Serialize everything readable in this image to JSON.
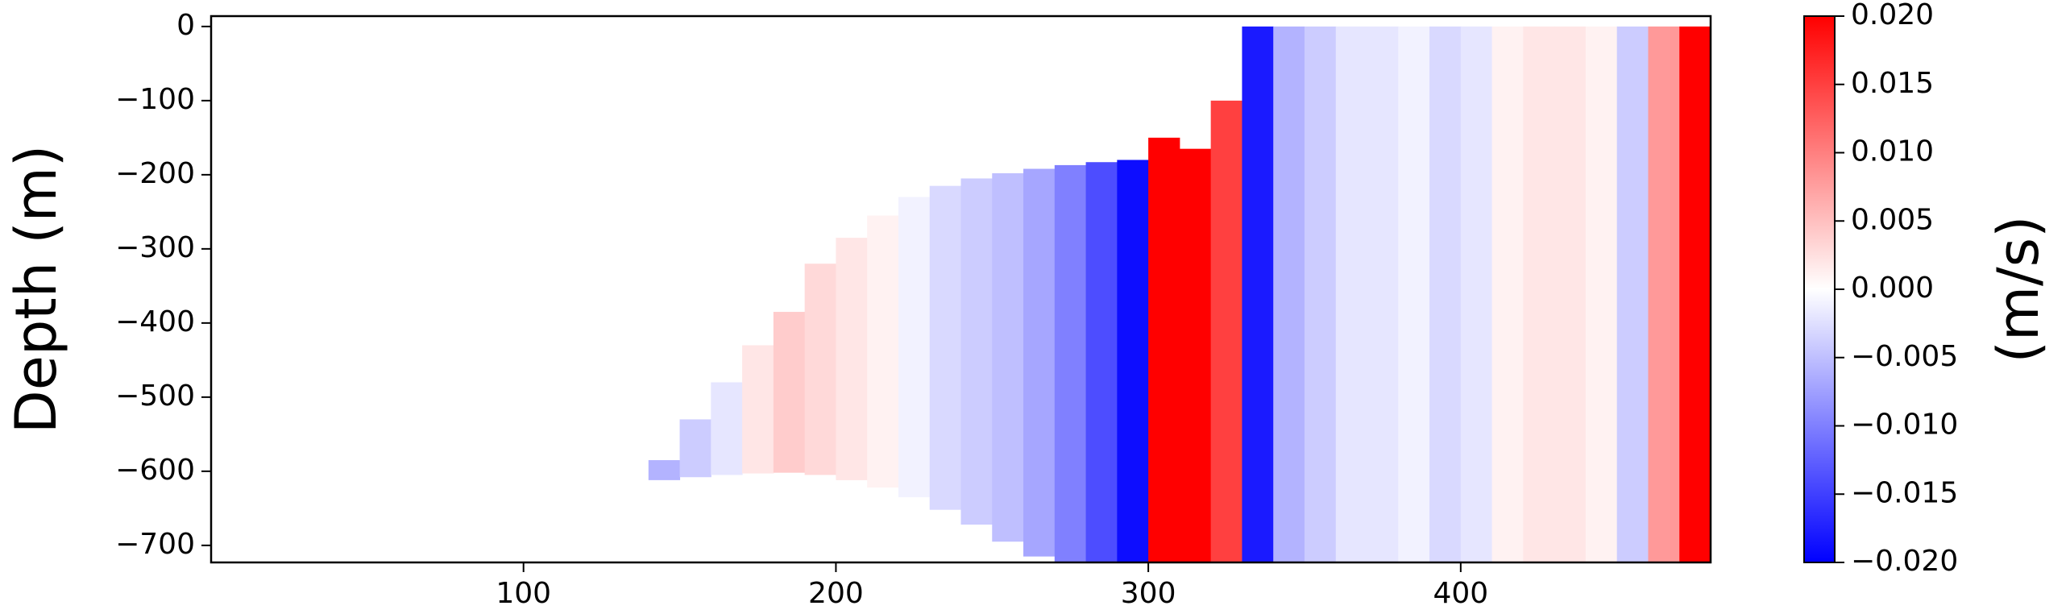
{
  "chart_data": {
    "type": "heatmap",
    "y_label": "Depth (m)",
    "colorbar_label": "(m/s)",
    "x": [
      145,
      155,
      165,
      175,
      185,
      195,
      205,
      215,
      225,
      235,
      245,
      255,
      265,
      275,
      285,
      295,
      305,
      315,
      325,
      335,
      345,
      355,
      365,
      375,
      385,
      395,
      405,
      415,
      425,
      435,
      445,
      455,
      465,
      475
    ],
    "values": [
      -0.006,
      -0.004,
      -0.002,
      0.002,
      0.004,
      0.003,
      0.002,
      0.001,
      -0.001,
      -0.003,
      -0.004,
      -0.005,
      -0.007,
      -0.01,
      -0.014,
      -0.019,
      0.02,
      0.02,
      0.015,
      -0.018,
      -0.006,
      -0.004,
      -0.002,
      -0.002,
      -0.001,
      -0.003,
      -0.002,
      0.001,
      0.002,
      0.002,
      0.001,
      -0.004,
      0.008,
      0.02
    ],
    "tops": [
      -585,
      -530,
      -480,
      -430,
      -385,
      -320,
      -285,
      -255,
      -230,
      -215,
      -205,
      -198,
      -192,
      -187,
      -183,
      -180,
      -150,
      -165,
      -100,
      0,
      0,
      0,
      0,
      0,
      0,
      0,
      0,
      0,
      0,
      0,
      0,
      0,
      0,
      0
    ],
    "bottoms": [
      -612,
      -608,
      -605,
      -603,
      -602,
      -605,
      -612,
      -622,
      -635,
      -652,
      -672,
      -695,
      -715,
      -723,
      -723,
      -723,
      -723,
      -723,
      -723,
      -723,
      -723,
      -723,
      -723,
      -723,
      -723,
      -723,
      -723,
      -723,
      -723,
      -723,
      -723,
      -723,
      -723,
      -723
    ],
    "xlim": [
      0,
      480
    ],
    "ylim": [
      -723,
      14
    ],
    "xticks": [
      100,
      200,
      300,
      400
    ],
    "yticks": [
      0,
      {
        "value": -100,
        "label": "−100"
      },
      {
        "value": -200,
        "label": "−200"
      },
      {
        "value": -300,
        "label": "−300"
      },
      {
        "value": -400,
        "label": "−400"
      },
      {
        "value": -500,
        "label": "−500"
      },
      {
        "value": -600,
        "label": "−600"
      },
      {
        "value": -700,
        "label": "−700"
      }
    ],
    "clim": [
      -0.02,
      0.02
    ],
    "cticks": [
      {
        "value": 0.02,
        "label": "0.020"
      },
      {
        "value": 0.015,
        "label": "0.015"
      },
      {
        "value": 0.01,
        "label": "0.010"
      },
      {
        "value": 0.005,
        "label": "0.005"
      },
      {
        "value": 0,
        "label": "0.000"
      },
      {
        "value": -0.005,
        "label": "−0.005"
      },
      {
        "value": -0.01,
        "label": "−0.010"
      },
      {
        "value": -0.015,
        "label": "−0.015"
      },
      {
        "value": -0.02,
        "label": "−0.020"
      }
    ],
    "colormap": [
      "#0000ff",
      "#ffffff",
      "#ff0000"
    ]
  }
}
